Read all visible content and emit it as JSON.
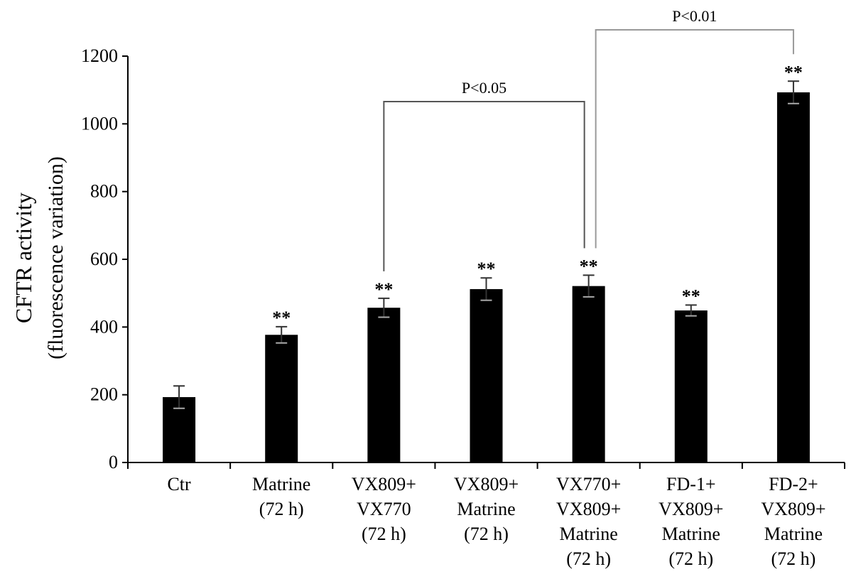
{
  "chart_data": {
    "type": "bar",
    "xlabel": "",
    "ylabel_line1": "CFTR activity",
    "ylabel_line2": "(fluorescence variation)",
    "ylim": [
      0,
      1200
    ],
    "yticks": [
      0,
      200,
      400,
      600,
      800,
      1000,
      1200
    ],
    "grid": false,
    "bar_color": "#000000",
    "categories": [
      [
        "Ctr"
      ],
      [
        "Matrine",
        "(72 h)"
      ],
      [
        "VX809+",
        "VX770",
        "(72 h)"
      ],
      [
        "VX809+",
        "Matrine",
        "(72 h)"
      ],
      [
        "VX770+",
        "VX809+",
        "Matrine",
        "(72 h)"
      ],
      [
        "FD-1+",
        "VX809+",
        "Matrine",
        "(72 h)"
      ],
      [
        "FD-2+",
        "VX809+",
        "Matrine",
        "(72 h)"
      ]
    ],
    "values": [
      193,
      377,
      457,
      512,
      521,
      449,
      1093
    ],
    "errors": [
      33,
      24,
      28,
      33,
      32,
      16,
      33
    ],
    "significance": [
      "",
      "**",
      "**",
      "**",
      "**",
      "**",
      "**"
    ],
    "comparisons": [
      {
        "from": 2,
        "to": 4,
        "label": "P<0.05"
      },
      {
        "from": 4,
        "to": 6,
        "label": "P<0.01"
      }
    ]
  }
}
